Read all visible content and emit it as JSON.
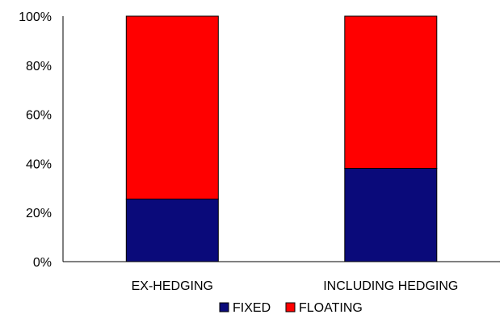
{
  "chart_data": {
    "type": "bar",
    "stacked": true,
    "categories": [
      "EX-HEDGING",
      "INCLUDING HEDGING"
    ],
    "series": [
      {
        "name": "FIXED",
        "color": "#0a0a7a",
        "values": [
          25.5,
          38
        ]
      },
      {
        "name": "FLOATING",
        "color": "#ff0000",
        "values": [
          74.5,
          62
        ]
      }
    ],
    "title": "",
    "xlabel": "",
    "ylabel": "",
    "ylim": [
      0,
      100
    ],
    "yticks": [
      "0%",
      "20%",
      "40%",
      "60%",
      "80%",
      "100%"
    ],
    "grid": false,
    "legend_position": "bottom"
  }
}
